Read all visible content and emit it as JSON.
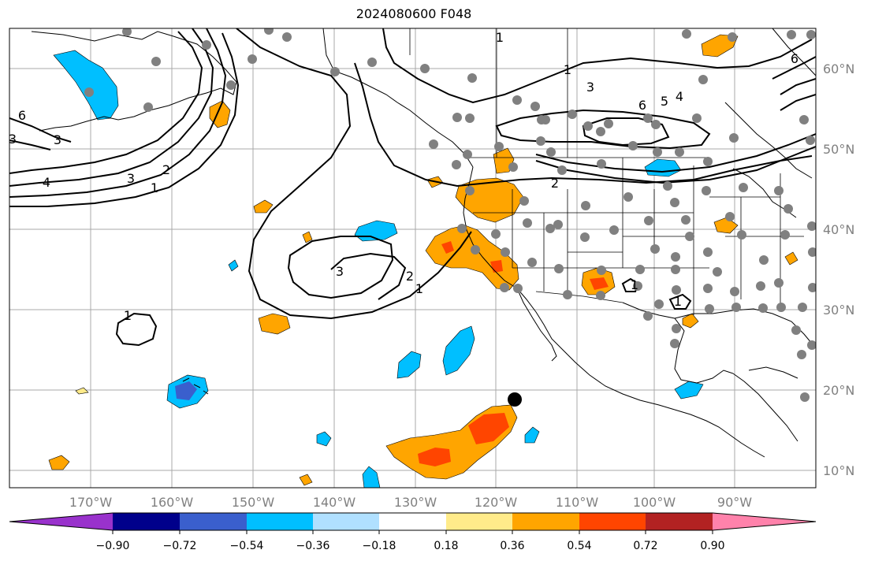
{
  "title": "2024080600 F048",
  "longitude_labels": [
    "170°W",
    "160°W",
    "150°W",
    "140°W",
    "130°W",
    "120°W",
    "110°W",
    "100°W",
    "90°W"
  ],
  "latitude_labels": [
    "60°N",
    "50°N",
    "40°N",
    "30°N",
    "20°N",
    "10°N"
  ],
  "colorbar": {
    "tick_labels": [
      "−0.90",
      "−0.72",
      "−0.54",
      "−0.36",
      "−0.18",
      "0.18",
      "0.36",
      "0.54",
      "0.72",
      "0.90"
    ],
    "colors": [
      "#9932cc",
      "#00008b",
      "#3a5fcd",
      "#00bfff",
      "#b0e0ff",
      "#ffffff",
      "#ffeb8a",
      "#ffa500",
      "#ff4500",
      "#b22222",
      "#ff82ab"
    ]
  },
  "contour_labels": [
    "1",
    "1",
    "2",
    "3",
    "4",
    "6",
    "3",
    "3",
    "3",
    "2",
    "1",
    "1",
    "2",
    "1",
    "3",
    "4",
    "5",
    "6",
    "1",
    "1",
    "6"
  ],
  "colors": {
    "contour": "#000000",
    "grid": "#a9a9a9",
    "station_dot": "#808080",
    "marker": "#000000",
    "positive": "#ffa500",
    "positive_strong": "#ff4500",
    "negative": "#00bfff"
  }
}
